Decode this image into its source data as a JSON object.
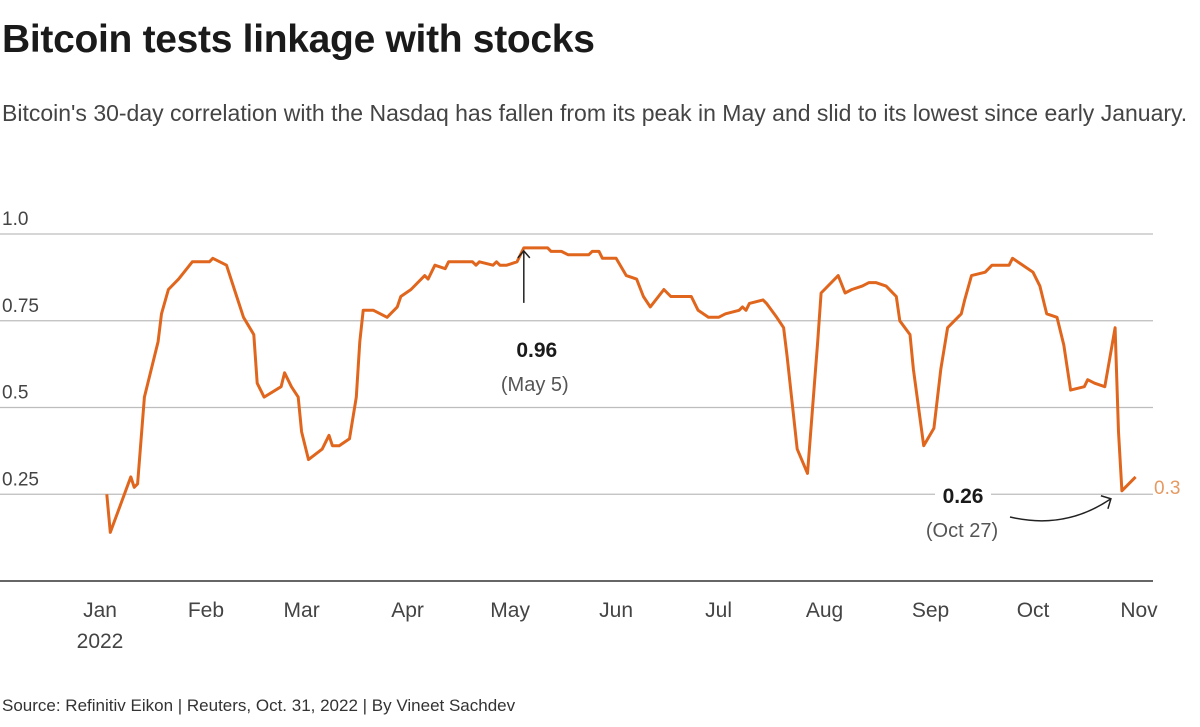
{
  "header": {
    "title": "Bitcoin tests linkage with stocks",
    "subtitle": "Bitcoin's 30-day correlation with the Nasdaq has fallen from its peak in May and slid to its lowest since early January."
  },
  "footer": {
    "source": "Source: Refinitiv Eikon | Reuters, Oct. 31, 2022 | By Vineet Sachdev"
  },
  "chart_data": {
    "type": "line",
    "title": "Bitcoin tests linkage with stocks",
    "xlabel": "",
    "ylabel": "",
    "ylim": [
      0,
      1.0
    ],
    "xlim": [
      "2022-01-01",
      "2022-11-01"
    ],
    "grid": true,
    "line_color": "#e0661e",
    "y_ticks": [
      {
        "value": 1.0,
        "label": "1.0"
      },
      {
        "value": 0.75,
        "label": "0.75"
      },
      {
        "value": 0.5,
        "label": "0.5"
      },
      {
        "value": 0.25,
        "label": "0.25"
      }
    ],
    "x_ticks": [
      {
        "date": "2022-01-01",
        "label": "Jan",
        "sublabel": "2022"
      },
      {
        "date": "2022-02-01",
        "label": "Feb"
      },
      {
        "date": "2022-03-01",
        "label": "Mar"
      },
      {
        "date": "2022-04-01",
        "label": "Apr"
      },
      {
        "date": "2022-05-01",
        "label": "May"
      },
      {
        "date": "2022-06-01",
        "label": "Jun"
      },
      {
        "date": "2022-07-01",
        "label": "Jul"
      },
      {
        "date": "2022-08-01",
        "label": "Aug"
      },
      {
        "date": "2022-09-01",
        "label": "Sep"
      },
      {
        "date": "2022-10-01",
        "label": "Oct"
      },
      {
        "date": "2022-11-01",
        "label": "Nov"
      }
    ],
    "series": [
      {
        "x": [
          "2022-01-03",
          "2022-01-04",
          "2022-01-10",
          "2022-01-11",
          "2022-01-12",
          "2022-01-14",
          "2022-01-18",
          "2022-01-19",
          "2022-01-21",
          "2022-01-24",
          "2022-01-28",
          "2022-02-02",
          "2022-02-03",
          "2022-02-07",
          "2022-02-10",
          "2022-02-12",
          "2022-02-15",
          "2022-02-16",
          "2022-02-18",
          "2022-02-23",
          "2022-02-24",
          "2022-02-26",
          "2022-02-28",
          "2022-03-01",
          "2022-03-03",
          "2022-03-07",
          "2022-03-09",
          "2022-03-10",
          "2022-03-12",
          "2022-03-15",
          "2022-03-17",
          "2022-03-18",
          "2022-03-19",
          "2022-03-22",
          "2022-03-24",
          "2022-03-26",
          "2022-03-29",
          "2022-03-30",
          "2022-04-02",
          "2022-04-06",
          "2022-04-07",
          "2022-04-09",
          "2022-04-12",
          "2022-04-13",
          "2022-04-20",
          "2022-04-21",
          "2022-04-22",
          "2022-04-26",
          "2022-04-27",
          "2022-04-28",
          "2022-04-30",
          "2022-05-03",
          "2022-05-05",
          "2022-05-12",
          "2022-05-13",
          "2022-05-16",
          "2022-05-18",
          "2022-05-24",
          "2022-05-25",
          "2022-05-27",
          "2022-05-28",
          "2022-06-01",
          "2022-06-04",
          "2022-06-07",
          "2022-06-09",
          "2022-06-11",
          "2022-06-15",
          "2022-06-17",
          "2022-06-23",
          "2022-06-25",
          "2022-06-28",
          "2022-07-01",
          "2022-07-03",
          "2022-07-07",
          "2022-07-08",
          "2022-07-09",
          "2022-07-10",
          "2022-07-14",
          "2022-07-15",
          "2022-07-18",
          "2022-07-20",
          "2022-07-21",
          "2022-07-24",
          "2022-07-27",
          "2022-07-30",
          "2022-07-31",
          "2022-08-05",
          "2022-08-07",
          "2022-08-09",
          "2022-08-12",
          "2022-08-14",
          "2022-08-16",
          "2022-08-19",
          "2022-08-22",
          "2022-08-23",
          "2022-08-26",
          "2022-08-27",
          "2022-08-30",
          "2022-09-02",
          "2022-09-04",
          "2022-09-06",
          "2022-09-10",
          "2022-09-11",
          "2022-09-13",
          "2022-09-17",
          "2022-09-19",
          "2022-09-24",
          "2022-09-25",
          "2022-09-28",
          "2022-10-01",
          "2022-10-03",
          "2022-10-05",
          "2022-10-08",
          "2022-10-10",
          "2022-10-12",
          "2022-10-16",
          "2022-10-17",
          "2022-10-19",
          "2022-10-22",
          "2022-10-25",
          "2022-10-26",
          "2022-10-27",
          "2022-10-31"
        ],
        "y": [
          0.25,
          0.14,
          0.3,
          0.27,
          0.28,
          0.53,
          0.69,
          0.77,
          0.84,
          0.87,
          0.92,
          0.92,
          0.93,
          0.91,
          0.82,
          0.76,
          0.71,
          0.57,
          0.53,
          0.56,
          0.6,
          0.56,
          0.53,
          0.43,
          0.35,
          0.38,
          0.42,
          0.39,
          0.39,
          0.41,
          0.53,
          0.69,
          0.78,
          0.78,
          0.77,
          0.76,
          0.79,
          0.82,
          0.84,
          0.88,
          0.87,
          0.91,
          0.9,
          0.92,
          0.92,
          0.91,
          0.92,
          0.91,
          0.92,
          0.91,
          0.91,
          0.92,
          0.96,
          0.96,
          0.95,
          0.95,
          0.94,
          0.94,
          0.95,
          0.95,
          0.93,
          0.93,
          0.88,
          0.87,
          0.82,
          0.79,
          0.84,
          0.82,
          0.82,
          0.78,
          0.76,
          0.76,
          0.77,
          0.78,
          0.79,
          0.78,
          0.8,
          0.81,
          0.8,
          0.76,
          0.73,
          0.65,
          0.38,
          0.31,
          0.69,
          0.83,
          0.88,
          0.83,
          0.84,
          0.85,
          0.86,
          0.86,
          0.85,
          0.82,
          0.75,
          0.71,
          0.61,
          0.39,
          0.44,
          0.61,
          0.73,
          0.77,
          0.81,
          0.88,
          0.89,
          0.91,
          0.91,
          0.93,
          0.91,
          0.89,
          0.85,
          0.77,
          0.76,
          0.68,
          0.55,
          0.56,
          0.58,
          0.57,
          0.56,
          0.73,
          0.43,
          0.26,
          0.3
        ]
      }
    ],
    "annotations": [
      {
        "value": "0.96",
        "label": "(May 5)",
        "date": "2022-05-05",
        "y": 0.96
      },
      {
        "value": "0.26",
        "label": "(Oct 27)",
        "date": "2022-10-27",
        "y": 0.26
      }
    ],
    "end_label": "0.3"
  }
}
